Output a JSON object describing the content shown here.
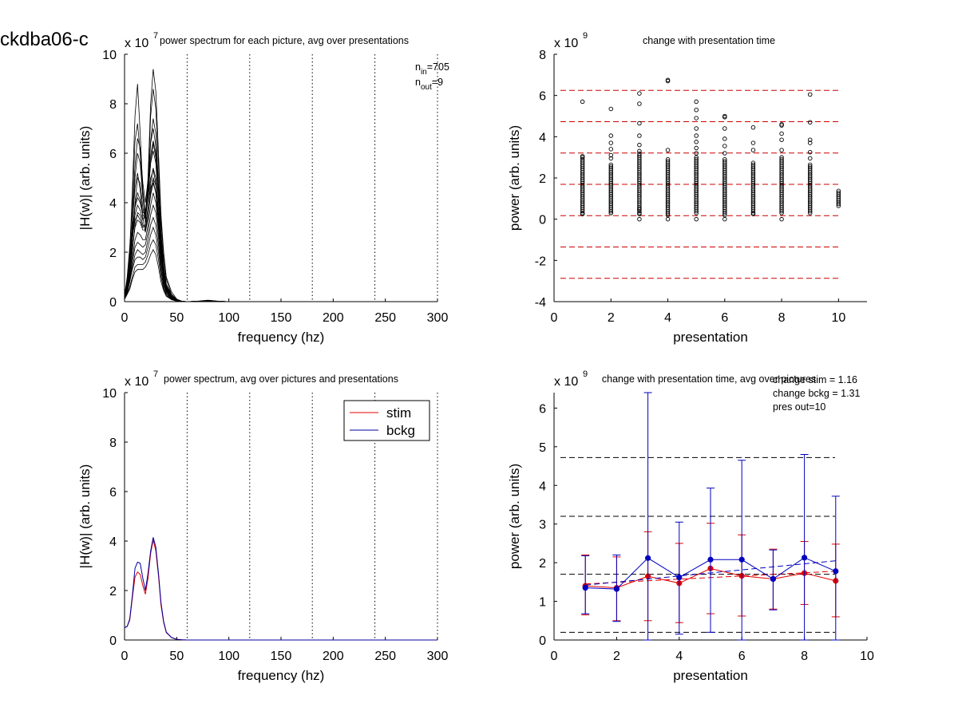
{
  "figure": {
    "title": "ckdba06-c"
  },
  "chart_data": [
    {
      "id": "tl",
      "type": "line",
      "title": "power spectrum for each picture, avg over presentations",
      "xlabel": "frequency (hz)",
      "ylabel": "|H(w)| (arb. units)",
      "exponent_base": "x 10",
      "exponent_power": "7",
      "xlim": [
        0,
        300
      ],
      "ylim": [
        0,
        10
      ],
      "xticks": [
        0,
        50,
        100,
        150,
        200,
        250,
        300
      ],
      "yticks": [
        0,
        2,
        4,
        6,
        8,
        10
      ],
      "vlines": [
        60,
        120,
        180,
        240,
        300
      ],
      "annotations": [
        {
          "main": "n",
          "sub": "in",
          "value": "=705"
        },
        {
          "main": "n",
          "sub": "out",
          "value": "=9"
        }
      ],
      "x": [
        0,
        2.5,
        5,
        7.5,
        10,
        12.5,
        15,
        17.5,
        20,
        22.5,
        25,
        27.5,
        30,
        32.5,
        35,
        37.5,
        40,
        45,
        50,
        55,
        60,
        70,
        80,
        90,
        100,
        150,
        200,
        250,
        300
      ],
      "series": [
        {
          "values": [
            0.1,
            0.8,
            2.0,
            4.5,
            7.5,
            8.8,
            6.8,
            4.5,
            3.5,
            5.0,
            8.0,
            9.4,
            8.5,
            6.0,
            3.5,
            2.0,
            1.0,
            0.4,
            0.1,
            0.02,
            0,
            0.02,
            0.06,
            0.02,
            0,
            0,
            0,
            0,
            0
          ]
        },
        {
          "values": [
            0.2,
            1.0,
            2.2,
            4.0,
            6.5,
            7.2,
            6.0,
            4.3,
            3.2,
            4.8,
            7.5,
            8.6,
            7.8,
            5.5,
            3.2,
            1.8,
            0.9,
            0.3,
            0.08,
            0.01,
            0,
            0.01,
            0.05,
            0.01,
            0,
            0,
            0,
            0,
            0
          ]
        },
        {
          "values": [
            0.1,
            0.7,
            1.5,
            3.0,
            5.0,
            6.0,
            5.6,
            4.2,
            3.6,
            4.5,
            6.5,
            7.4,
            6.8,
            4.8,
            2.8,
            1.5,
            0.7,
            0.3,
            0.07,
            0.01,
            0,
            0.01,
            0.04,
            0.01,
            0,
            0,
            0,
            0,
            0
          ]
        },
        {
          "values": [
            0.3,
            0.9,
            1.8,
            3.4,
            5.5,
            6.6,
            6.2,
            4.8,
            4.0,
            4.9,
            6.4,
            7.0,
            6.3,
            4.4,
            2.6,
            1.4,
            0.7,
            0.25,
            0.06,
            0.01,
            0,
            0.01,
            0.05,
            0.01,
            0,
            0,
            0,
            0,
            0
          ]
        },
        {
          "values": [
            0.1,
            0.5,
            1.2,
            2.4,
            4.0,
            5.0,
            4.8,
            3.8,
            3.3,
            4.2,
            5.6,
            6.4,
            5.8,
            4.2,
            2.4,
            1.3,
            0.6,
            0.2,
            0.05,
            0.01,
            0,
            0.01,
            0.04,
            0.01,
            0,
            0,
            0,
            0,
            0
          ]
        },
        {
          "values": [
            0.2,
            0.6,
            1.3,
            2.6,
            3.8,
            4.2,
            4.0,
            3.5,
            3.4,
            4.4,
            5.6,
            6.1,
            5.6,
            4.0,
            2.3,
            1.2,
            0.6,
            0.2,
            0.05,
            0.01,
            0,
            0.01,
            0.04,
            0.01,
            0,
            0,
            0,
            0,
            0
          ]
        },
        {
          "values": [
            0.1,
            0.4,
            1.0,
            2.0,
            3.1,
            3.6,
            3.5,
            3.1,
            3.0,
            3.8,
            4.8,
            5.4,
            5.0,
            3.6,
            2.1,
            1.1,
            0.5,
            0.18,
            0.04,
            0.01,
            0,
            0.01,
            0.03,
            0.01,
            0,
            0,
            0,
            0,
            0
          ]
        },
        {
          "values": [
            0.2,
            0.5,
            1.1,
            2.1,
            3.0,
            3.3,
            3.2,
            2.9,
            2.9,
            3.5,
            4.3,
            4.8,
            4.4,
            3.2,
            1.9,
            1.0,
            0.5,
            0.16,
            0.04,
            0.01,
            0,
            0.01,
            0.03,
            0.01,
            0,
            0,
            0,
            0,
            0
          ]
        },
        {
          "values": [
            0.1,
            0.4,
            0.9,
            1.7,
            2.5,
            2.8,
            2.7,
            2.5,
            2.5,
            3.1,
            3.9,
            4.4,
            4.0,
            2.9,
            1.7,
            0.9,
            0.45,
            0.15,
            0.04,
            0.01,
            0,
            0.01,
            0.03,
            0.01,
            0,
            0,
            0,
            0,
            0
          ]
        },
        {
          "values": [
            0.15,
            0.45,
            0.9,
            1.6,
            2.2,
            2.4,
            2.3,
            2.2,
            2.3,
            2.8,
            3.5,
            3.9,
            3.6,
            2.6,
            1.5,
            0.8,
            0.4,
            0.13,
            0.03,
            0.01,
            0,
            0.01,
            0.03,
            0.01,
            0,
            0,
            0,
            0,
            0
          ]
        },
        {
          "values": [
            0.1,
            0.35,
            0.8,
            1.4,
            1.9,
            2.1,
            2.0,
            1.9,
            2.0,
            2.5,
            3.1,
            3.4,
            3.1,
            2.3,
            1.3,
            0.7,
            0.35,
            0.11,
            0.03,
            0.01,
            0,
            0.01,
            0.02,
            0.01,
            0,
            0,
            0,
            0,
            0
          ]
        },
        {
          "values": [
            0.2,
            0.4,
            0.8,
            1.3,
            1.7,
            1.8,
            1.8,
            1.7,
            1.8,
            2.2,
            2.7,
            3.0,
            2.7,
            2.0,
            1.2,
            0.6,
            0.3,
            0.1,
            0.03,
            0.01,
            0,
            0.01,
            0.02,
            0.01,
            0,
            0,
            0,
            0,
            0
          ]
        },
        {
          "values": [
            0.1,
            0.3,
            0.6,
            1.0,
            1.4,
            1.5,
            1.5,
            1.5,
            1.6,
            1.9,
            2.3,
            2.5,
            2.3,
            1.7,
            1.0,
            0.5,
            0.25,
            0.09,
            0.02,
            0.01,
            0,
            0.01,
            0.02,
            0.01,
            0,
            0,
            0,
            0,
            0
          ]
        },
        {
          "values": [
            0.1,
            0.3,
            0.5,
            0.9,
            1.2,
            1.3,
            1.3,
            1.3,
            1.4,
            1.6,
            1.9,
            2.1,
            1.9,
            1.4,
            0.8,
            0.45,
            0.22,
            0.08,
            0.02,
            0.01,
            0,
            0.01,
            0.02,
            0.01,
            0,
            0,
            0,
            0,
            0
          ]
        },
        {
          "values": [
            0.1,
            0.6,
            1.6,
            3.2,
            4.6,
            5.2,
            4.5,
            3.4,
            2.8,
            3.4,
            4.4,
            5.0,
            4.7,
            3.5,
            2.1,
            1.1,
            0.55,
            0.18,
            0.04,
            0.01,
            0,
            0.01,
            0.03,
            0.01,
            0,
            0,
            0,
            0,
            0
          ]
        },
        {
          "values": [
            0.2,
            0.7,
            1.5,
            2.8,
            3.9,
            4.4,
            4.1,
            3.6,
            3.6,
            4.6,
            5.9,
            6.5,
            6.0,
            4.3,
            2.5,
            1.3,
            0.65,
            0.22,
            0.05,
            0.01,
            0,
            0.01,
            0.04,
            0.01,
            0,
            0,
            0,
            0,
            0
          ]
        },
        {
          "values": [
            0.1,
            0.5,
            1.3,
            2.5,
            3.5,
            3.9,
            3.7,
            3.3,
            3.5,
            4.2,
            5.0,
            5.3,
            4.8,
            3.4,
            2.0,
            1.0,
            0.5,
            0.17,
            0.04,
            0.01,
            0,
            0.01,
            0.03,
            0.01,
            0,
            0,
            0,
            0,
            0
          ]
        },
        {
          "values": [
            0.3,
            0.8,
            1.6,
            2.6,
            3.3,
            3.5,
            3.3,
            3.0,
            3.1,
            3.8,
            4.6,
            4.9,
            4.4,
            3.1,
            1.8,
            0.9,
            0.45,
            0.15,
            0.04,
            0.01,
            0,
            0.01,
            0.03,
            0.01,
            0,
            0,
            0,
            0,
            0
          ]
        }
      ]
    },
    {
      "id": "tr",
      "type": "scatter",
      "title": "change with presentation time",
      "xlabel": "presentation",
      "ylabel": "power (arb. units)",
      "exponent_base": "x 10",
      "exponent_power": "9",
      "xlim": [
        0,
        11
      ],
      "ylim": [
        -4,
        8
      ],
      "xticks": [
        0,
        2,
        4,
        6,
        8,
        10
      ],
      "yticks": [
        -4,
        -2,
        0,
        2,
        4,
        6,
        8
      ],
      "hlines": [
        6.25,
        4.73,
        3.21,
        1.69,
        0.17,
        -1.35,
        -2.87
      ],
      "points": [
        {
          "x": 1,
          "band": [
            0.3,
            3.0
          ],
          "extra": [
            5.7,
            0.25,
            3.05
          ]
        },
        {
          "x": 2,
          "band": [
            0.3,
            2.7
          ],
          "extra": [
            5.35,
            4.05,
            3.7,
            3.4,
            3.1,
            2.95,
            0.3
          ]
        },
        {
          "x": 3,
          "band": [
            0.3,
            3.2
          ],
          "extra": [
            6.1,
            5.6,
            4.65,
            4.05,
            3.6,
            3.3,
            0.5,
            0.25,
            0.0
          ]
        },
        {
          "x": 4,
          "band": [
            0.2,
            2.9
          ],
          "extra": [
            6.75,
            6.7,
            3.35,
            0.0
          ]
        },
        {
          "x": 5,
          "band": [
            0.3,
            3.0
          ],
          "extra": [
            5.7,
            5.3,
            4.9,
            4.4,
            4.05,
            3.75,
            3.45,
            3.2,
            0.0
          ]
        },
        {
          "x": 6,
          "band": [
            0.2,
            2.9
          ],
          "extra": [
            5.0,
            4.95,
            4.4,
            3.9,
            3.55,
            3.2,
            0.0
          ]
        },
        {
          "x": 7,
          "band": [
            0.3,
            2.8
          ],
          "extra": [
            4.45,
            3.7,
            3.35,
            0.25
          ]
        },
        {
          "x": 8,
          "band": [
            0.3,
            3.0
          ],
          "extra": [
            4.6,
            4.55,
            4.15,
            3.85,
            3.35,
            0.0
          ]
        },
        {
          "x": 9,
          "band": [
            0.3,
            2.7
          ],
          "extra": [
            6.05,
            4.7,
            3.85,
            3.7,
            3.25,
            2.95
          ]
        },
        {
          "x": 10,
          "band": [
            0.65,
            1.45
          ],
          "extra": []
        }
      ]
    },
    {
      "id": "bl",
      "type": "line",
      "title": "power spectrum, avg over pictures and presentations",
      "xlabel": "frequency (hz)",
      "ylabel": "|H(w)| (arb. units)",
      "exponent_base": "x 10",
      "exponent_power": "7",
      "xlim": [
        0,
        300
      ],
      "ylim": [
        0,
        10
      ],
      "xticks": [
        0,
        50,
        100,
        150,
        200,
        250,
        300
      ],
      "yticks": [
        0,
        2,
        4,
        6,
        8,
        10
      ],
      "vlines": [
        60,
        120,
        180,
        240,
        300
      ],
      "legend": {
        "position": "top-right",
        "entries": [
          "stim",
          "bckg"
        ]
      },
      "x": [
        0,
        2.5,
        5,
        7.5,
        10,
        12.5,
        15,
        17.5,
        20,
        22.5,
        25,
        27.5,
        30,
        32.5,
        35,
        37.5,
        40,
        45,
        50,
        55,
        60,
        100,
        150,
        200,
        250,
        300
      ],
      "series": [
        {
          "name": "stim",
          "color": "#e00000",
          "values": [
            0.5,
            0.55,
            0.8,
            1.7,
            2.55,
            2.75,
            2.65,
            2.2,
            1.85,
            2.5,
            3.5,
            4.05,
            3.6,
            2.6,
            1.4,
            0.7,
            0.3,
            0.1,
            0.03,
            0.01,
            0,
            0,
            0,
            0,
            0,
            0
          ]
        },
        {
          "name": "bckg",
          "color": "#0000a0",
          "values": [
            0.5,
            0.55,
            0.85,
            1.8,
            2.9,
            3.15,
            3.1,
            2.5,
            2.0,
            2.7,
            3.6,
            4.15,
            3.75,
            2.7,
            1.5,
            0.75,
            0.32,
            0.1,
            0.03,
            0.01,
            0,
            0,
            0,
            0,
            0,
            0
          ]
        }
      ]
    },
    {
      "id": "br",
      "type": "line",
      "title": "change with presentation time, avg over pictures",
      "xlabel": "presentation",
      "ylabel": "power (arb. units)",
      "exponent_base": "x 10",
      "exponent_power": "9",
      "xlim": [
        0,
        10
      ],
      "ylim": [
        0,
        6.4
      ],
      "xticks": [
        0,
        2,
        4,
        6,
        8,
        10
      ],
      "yticks": [
        0,
        1,
        2,
        3,
        4,
        5,
        6
      ],
      "hlines": [
        4.72,
        3.2,
        1.7,
        0.2
      ],
      "annotations": [
        "change stim = 1.16",
        "change bckg = 1.31",
        "pres out=10"
      ],
      "x": [
        1,
        2,
        3,
        4,
        5,
        6,
        7,
        8,
        9
      ],
      "series": [
        {
          "name": "stim",
          "color": "#e00000",
          "values": [
            1.4,
            1.35,
            1.65,
            1.47,
            1.85,
            1.66,
            1.58,
            1.73,
            1.53
          ],
          "err_low": [
            0.65,
            0.5,
            0.5,
            0.45,
            0.68,
            0.62,
            0.8,
            0.92,
            0.6
          ],
          "err_high": [
            2.2,
            2.15,
            2.8,
            2.5,
            3.02,
            2.72,
            2.35,
            2.55,
            2.48
          ],
          "trend": [
            1.45,
            1.78
          ]
        },
        {
          "name": "bckg",
          "color": "#0000c0",
          "values": [
            1.35,
            1.32,
            2.12,
            1.62,
            2.08,
            2.08,
            1.58,
            2.13,
            1.78
          ],
          "err_low": [
            0.68,
            0.48,
            0.0,
            0.15,
            0.2,
            0.0,
            0.78,
            0.0,
            0.0
          ],
          "err_high": [
            2.18,
            2.2,
            6.4,
            3.05,
            3.93,
            4.65,
            2.33,
            4.8,
            3.72
          ],
          "trend": [
            1.42,
            2.05
          ]
        }
      ]
    }
  ]
}
